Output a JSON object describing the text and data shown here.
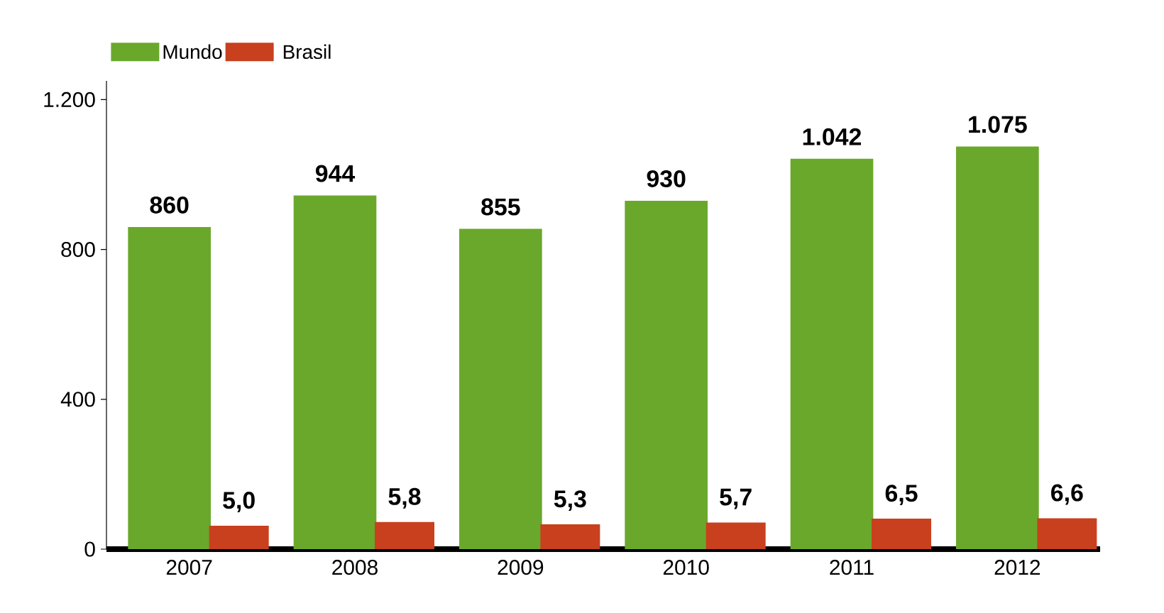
{
  "chart_data": {
    "type": "bar",
    "categories": [
      "2007",
      "2008",
      "2009",
      "2010",
      "2011",
      "2012"
    ],
    "series": [
      {
        "name": "Mundo",
        "color": "#6aa82c",
        "values": [
          860,
          944,
          855,
          930,
          1042,
          1075
        ],
        "value_labels": [
          "860",
          "944",
          "855",
          "930",
          "1.042",
          "1.075"
        ]
      },
      {
        "name": "Brasil",
        "color": "#c8401e",
        "axis": "y2",
        "values": [
          5.0,
          5.8,
          5.3,
          5.7,
          6.5,
          6.6
        ],
        "value_labels": [
          "5,0",
          "5,8",
          "5,3",
          "5,7",
          "6,5",
          "6,6"
        ]
      }
    ],
    "ylim": [
      0,
      1250
    ],
    "yticks": [
      0,
      400,
      800,
      {
        "value": 1200,
        "label": "1.200"
      }
    ],
    "y2lim": [
      0,
      100
    ],
    "legend": "top left",
    "grid": false
  }
}
